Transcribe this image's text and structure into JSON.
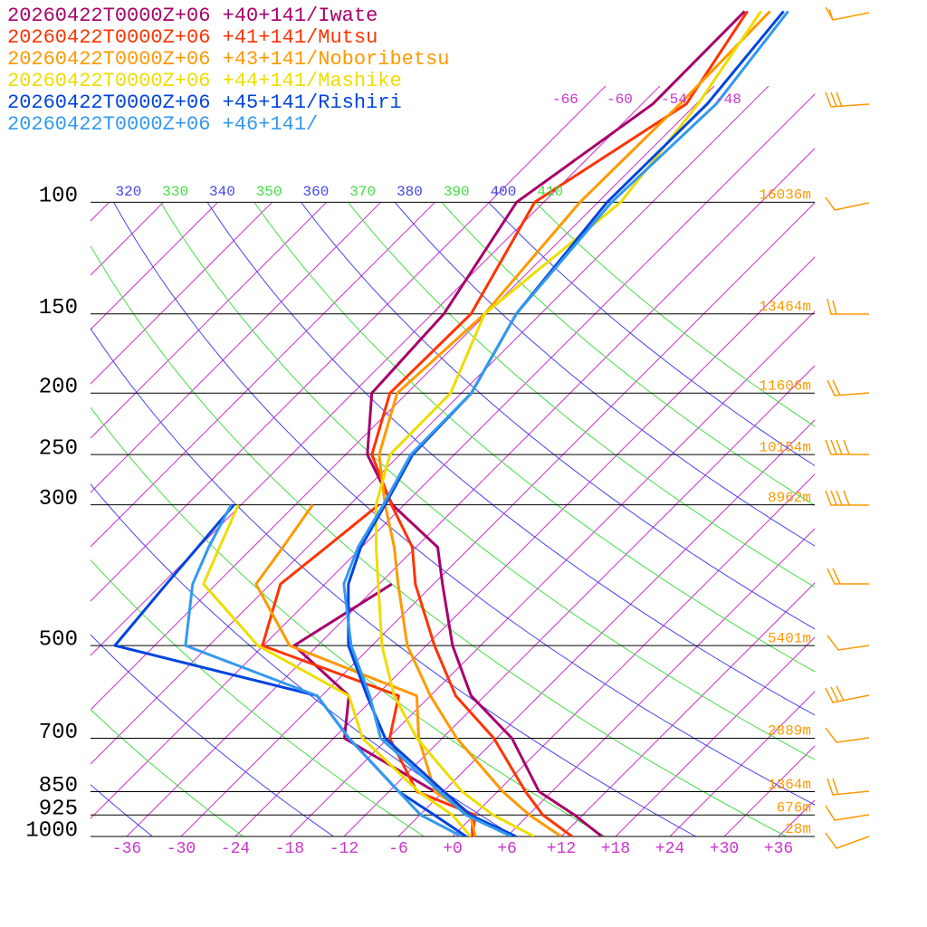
{
  "chart_data": {
    "type": "skewt",
    "levels": [
      1000,
      925,
      850,
      700,
      600,
      500,
      400,
      350,
      300,
      250,
      200,
      150,
      100,
      70,
      50
    ],
    "series": [
      {
        "name": "20260422T0000Z+06 +40+141/Iwate",
        "color": "#a8006a",
        "values": [
          16.5,
          11.1,
          4.6,
          -4.3,
          -13.5,
          -21.1,
          -29.0,
          -33.6,
          -43.3,
          -51.6,
          -57.9,
          -58.7,
          -63,
          -58.8,
          -58.9
        ],
        "dewpoint": [
          2.2,
          -0.2,
          -6.9,
          -22.8,
          -27.0,
          -38.6,
          -34.6,
          null,
          null,
          null,
          null,
          null,
          null,
          null,
          null
        ]
      },
      {
        "name": "20260422T0000Z+06 +41+141/Mutsu",
        "color": "#ff3300",
        "values": [
          13.2,
          7.6,
          3.1,
          -6.3,
          -15.2,
          -23.1,
          -32.0,
          -36.4,
          -43.4,
          -51.1,
          -55.9,
          -55.7,
          -61,
          -55.1,
          -58.6
        ],
        "dewpoint": [
          2.2,
          0.1,
          -8.9,
          -17.8,
          -21.5,
          -42.1,
          -46.9,
          -45.9,
          -44.8,
          null,
          null,
          null,
          null,
          null,
          null
        ]
      },
      {
        "name": "20260422T0000Z+06 +43+141/Noboribetsu",
        "color": "#ff9900",
        "values": [
          12,
          6.1,
          0.6,
          -10.4,
          -18.0,
          -26.1,
          -33.9,
          -38.4,
          -44.1,
          -50.3,
          -55.1,
          -54.2,
          -56,
          -55.8,
          -56.1
        ],
        "dewpoint": [
          2.5,
          -0.4,
          -6.9,
          -14.6,
          -19.5,
          -39.1,
          -49.6,
          -50.7,
          -52.1,
          null,
          null,
          null,
          null,
          null,
          null
        ]
      },
      {
        "name": "20260422T0000Z+06 +44+141/Mashike",
        "color": "#eedd00",
        "values": [
          9,
          2.1,
          -3.9,
          -14.8,
          -22.0,
          -28.9,
          -36.1,
          -40.4,
          -45.1,
          -49.1,
          -49.2,
          -54.2,
          -51.5,
          -53.8,
          -57.1
        ],
        "dewpoint": [
          2,
          -2.4,
          -8.7,
          -20.8,
          -27.0,
          -42.6,
          -55.4,
          -57.7,
          -60.3,
          null,
          null,
          null,
          null,
          null,
          null
        ]
      },
      {
        "name": "20260422T0000Z+06 +45+141/Rishiri",
        "color": "#0044dd",
        "values": [
          7,
          -0.4,
          -5.9,
          -18.3,
          -25.0,
          -32.6,
          -39.4,
          -42.1,
          -44.1,
          -46.6,
          -46.9,
          -50.7,
          -53,
          -52.8,
          -54.6
        ],
        "dewpoint": [
          1.5,
          -4.4,
          -10.9,
          -22.3,
          -30.5,
          -58.4,
          -59.5,
          -60.1,
          -60.8,
          null,
          null,
          null,
          null,
          null,
          null
        ]
      },
      {
        "name": "20260422T0000Z+06 +46+141/",
        "color": "#3399ee",
        "values": [
          6.5,
          -0.9,
          -6.4,
          -18.8,
          -24.7,
          -32.3,
          -39.9,
          -42.4,
          -44.3,
          -46.8,
          -46.9,
          -50.7,
          -52.5,
          -51.8,
          -54.1
        ],
        "dewpoint": [
          1,
          -5.9,
          -10.9,
          -22.3,
          -30.5,
          -50.6,
          -56.6,
          -58.9,
          -61.1,
          null,
          null,
          null,
          null,
          null,
          null
        ]
      }
    ],
    "xlim": [
      -40,
      40
    ],
    "xticks": [
      -36,
      -30,
      -24,
      -18,
      -12,
      -6,
      {
        "value": 0,
        "label": "+0"
      },
      {
        "value": 6,
        "label": "+6"
      },
      {
        "value": 12,
        "label": "+12"
      },
      {
        "value": 18,
        "label": "+18"
      },
      {
        "value": 24,
        "label": "+24"
      },
      {
        "value": 30,
        "label": "+30"
      },
      {
        "value": 36,
        "label": "+36"
      }
    ],
    "ylim": [
      1000,
      48
    ],
    "log_y": true,
    "yticks": [
      1000,
      925,
      850,
      700,
      500,
      300,
      250,
      200,
      150,
      100
    ],
    "heights": [
      {
        "value": 28,
        "label": "28m"
      },
      {
        "value": 676,
        "label": "676m"
      },
      {
        "value": 1364,
        "label": "1364m"
      },
      {
        "value": 2889,
        "label": "2889m"
      },
      {
        "value": 5401,
        "label": "5401m"
      },
      {
        "value": 8962,
        "label": "8962m"
      },
      {
        "value": 10154,
        "label": "10154m"
      },
      {
        "value": 11606,
        "label": "11606m"
      },
      {
        "value": 13464,
        "label": "13464m"
      },
      {
        "value": 16036,
        "label": "16036m"
      }
    ],
    "isotherm_labels": [
      -66,
      -60,
      -54,
      -48
    ],
    "theta_labels": [
      320,
      330,
      340,
      350,
      360,
      370,
      380,
      390,
      400,
      410
    ]
  }
}
